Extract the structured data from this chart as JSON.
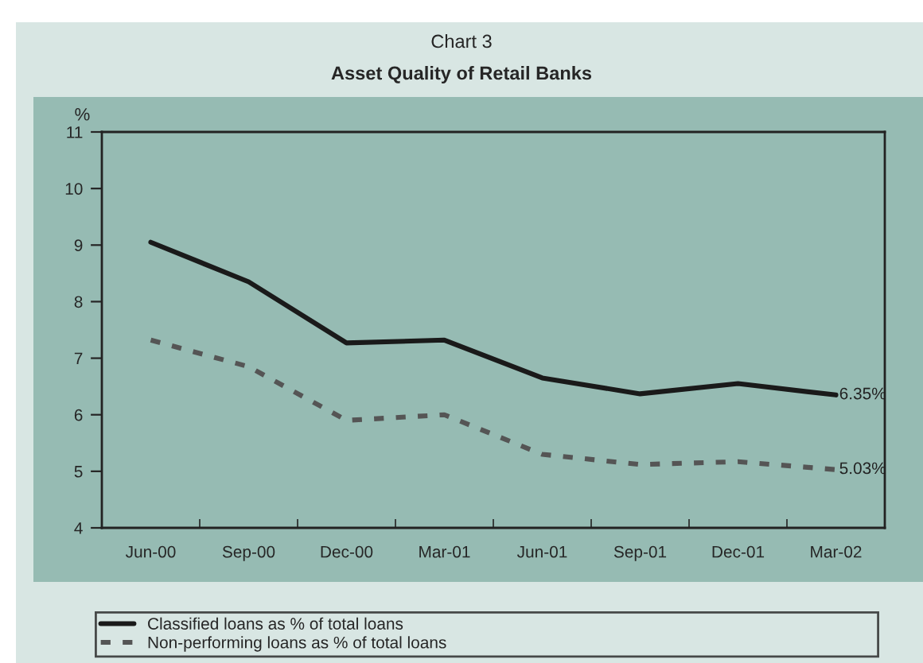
{
  "chart_data": {
    "type": "line",
    "title": "Chart 3",
    "subtitle": "Asset Quality of Retail Banks",
    "ylabel": "%",
    "categories": [
      "Jun-00",
      "Sep-00",
      "Dec-00",
      "Mar-01",
      "Jun-01",
      "Sep-01",
      "Dec-01",
      "Mar-02"
    ],
    "series": [
      {
        "name": "Classified loans as % of total loans",
        "color": "#1a1a1a",
        "line_style": "solid",
        "values": [
          9.05,
          8.35,
          7.27,
          7.32,
          6.65,
          6.37,
          6.55,
          6.35
        ],
        "value_labels": [
          null,
          null,
          null,
          null,
          null,
          null,
          null,
          "6.35%"
        ]
      },
      {
        "name": "Non-performing loans as % of total loans",
        "color": "#555555",
        "line_style": "dashed",
        "values": [
          7.32,
          6.85,
          5.9,
          6.0,
          5.3,
          5.12,
          5.17,
          5.03
        ],
        "value_labels": [
          null,
          null,
          null,
          null,
          null,
          null,
          null,
          "5.03%"
        ]
      }
    ],
    "ylim": [
      4,
      11
    ],
    "yticks": [
      4,
      5,
      6,
      7,
      8,
      9,
      10,
      11
    ],
    "grid": false,
    "legend": "bottom",
    "marker": "none"
  }
}
